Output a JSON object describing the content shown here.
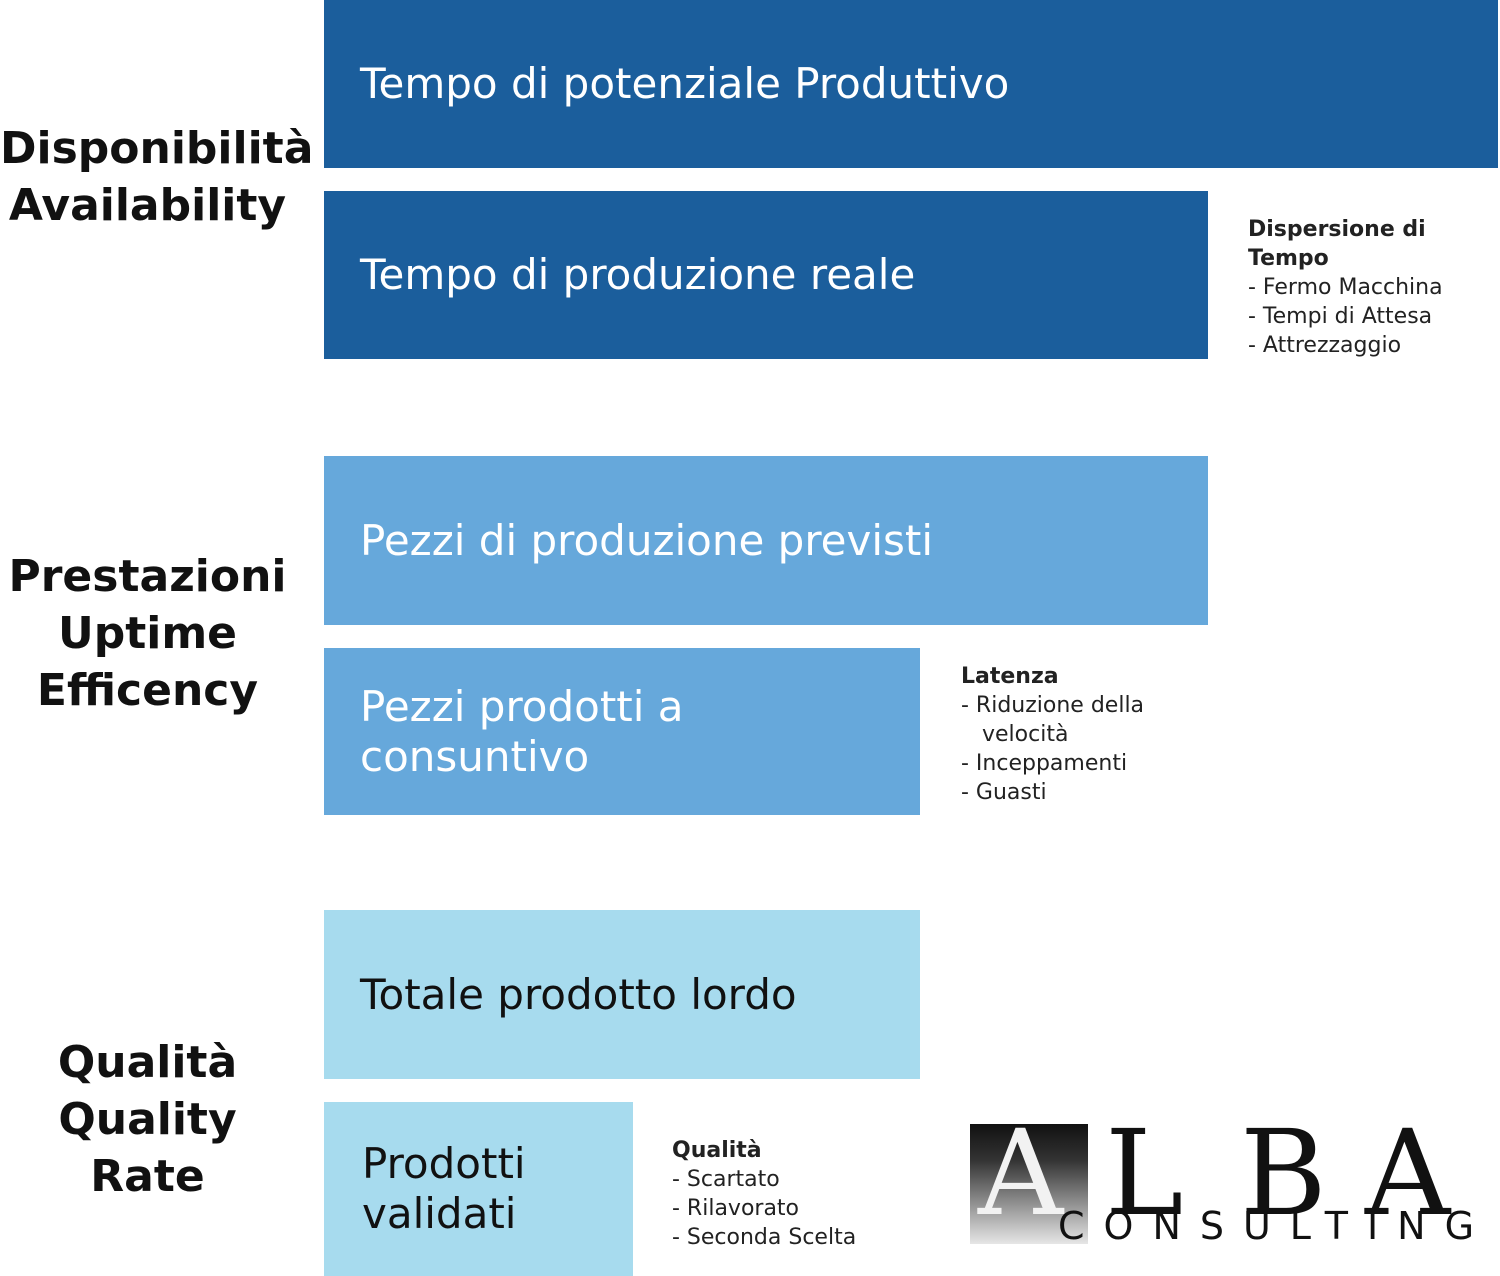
{
  "sections": {
    "availability": {
      "line1": "Disponibilità",
      "line2": "Availability"
    },
    "performance": {
      "line1": "Prestazioni",
      "line2": "Uptime",
      "line3": "Efficency"
    },
    "quality": {
      "line1": "Qualità",
      "line2": "Quality Rate"
    }
  },
  "bars": {
    "potential_time": "Tempo di potenziale Produttivo",
    "real_time": "Tempo di produzione reale",
    "planned_pieces": "Pezzi di produzione previsti",
    "produced_pieces_line1": "Pezzi prodotti a",
    "produced_pieces_line2": "consuntivo",
    "gross_total": "Totale prodotto lordo",
    "validated_line1": "Prodotti",
    "validated_line2": "validati"
  },
  "notes": {
    "time_loss": {
      "title": "Dispersione di Tempo",
      "items": [
        "- Fermo Macchina",
        "- Tempi di Attesa",
        "- Attrezzaggio"
      ]
    },
    "latency": {
      "title": "Latenza",
      "items": [
        "- Riduzione della",
        "   velocità",
        "- Inceppamenti",
        "- Guasti"
      ]
    },
    "quality": {
      "title": "Qualità",
      "items": [
        "- Scartato",
        "- Rilavorato",
        "- Seconda Scelta"
      ]
    }
  },
  "logo": {
    "letter_a1": "A",
    "letter_l": "L",
    "letter_b": "B",
    "letter_a2": "A",
    "subtitle": "CONSULTING"
  },
  "colors": {
    "dark_blue": "#1b5e9c",
    "mid_blue": "#66a8db",
    "light_blue": "#a7dbee"
  }
}
